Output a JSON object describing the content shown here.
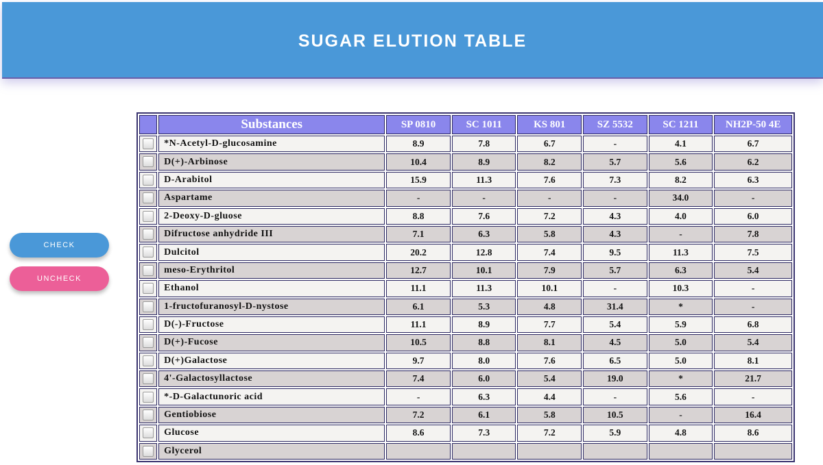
{
  "header": {
    "title": "SUGAR ELUTION TABLE"
  },
  "buttons": {
    "check_label": "CHECK",
    "uncheck_label": "UNCHECK"
  },
  "table": {
    "columns": [
      "Substances",
      "SP 0810",
      "SC 1011",
      "KS 801",
      "SZ 5532",
      "SC 1211",
      "NH2P-50 4E"
    ],
    "rows": [
      {
        "name": "*N-Acetyl-D-glucosamine",
        "values": [
          "8.9",
          "7.8",
          "6.7",
          "-",
          "4.1",
          "6.7"
        ]
      },
      {
        "name": "D(+)-Arbinose",
        "values": [
          "10.4",
          "8.9",
          "8.2",
          "5.7",
          "5.6",
          "6.2"
        ]
      },
      {
        "name": "D-Arabitol",
        "values": [
          "15.9",
          "11.3",
          "7.6",
          "7.3",
          "8.2",
          "6.3"
        ]
      },
      {
        "name": "Aspartame",
        "values": [
          "-",
          "-",
          "-",
          "-",
          "34.0",
          "-"
        ]
      },
      {
        "name": "2-Deoxy-D-gluose",
        "values": [
          "8.8",
          "7.6",
          "7.2",
          "4.3",
          "4.0",
          "6.0"
        ]
      },
      {
        "name": "Difructose anhydride III",
        "values": [
          "7.1",
          "6.3",
          "5.8",
          "4.3",
          "-",
          "7.8"
        ]
      },
      {
        "name": "Dulcitol",
        "values": [
          "20.2",
          "12.8",
          "7.4",
          "9.5",
          "11.3",
          "7.5"
        ]
      },
      {
        "name": "meso-Erythritol",
        "values": [
          "12.7",
          "10.1",
          "7.9",
          "5.7",
          "6.3",
          "5.4"
        ]
      },
      {
        "name": "Ethanol",
        "values": [
          "11.1",
          "11.3",
          "10.1",
          "-",
          "10.3",
          "-"
        ]
      },
      {
        "name": "1-fructofuranosyl-D-nystose",
        "values": [
          "6.1",
          "5.3",
          "4.8",
          "31.4",
          "*",
          "-"
        ]
      },
      {
        "name": "D(-)-Fructose",
        "values": [
          "11.1",
          "8.9",
          "7.7",
          "5.4",
          "5.9",
          "6.8"
        ]
      },
      {
        "name": "D(+)-Fucose",
        "values": [
          "10.5",
          "8.8",
          "8.1",
          "4.5",
          "5.0",
          "5.4"
        ]
      },
      {
        "name": "D(+)Galactose",
        "values": [
          "9.7",
          "8.0",
          "7.6",
          "6.5",
          "5.0",
          "8.1"
        ]
      },
      {
        "name": "4'-Galactosyllactose",
        "values": [
          "7.4",
          "6.0",
          "5.4",
          "19.0",
          "*",
          "21.7"
        ]
      },
      {
        "name": "*-D-Galactunoric acid",
        "values": [
          "-",
          "6.3",
          "4.4",
          "-",
          "5.6",
          "-"
        ]
      },
      {
        "name": "Gentiobiose",
        "values": [
          "7.2",
          "6.1",
          "5.8",
          "10.5",
          "-",
          "16.4"
        ]
      },
      {
        "name": "Glucose",
        "values": [
          "8.6",
          "7.3",
          "7.2",
          "5.9",
          "4.8",
          "8.6"
        ]
      },
      {
        "name": "Glycerol",
        "values": [
          "",
          "",
          "",
          "",
          "",
          ""
        ]
      }
    ]
  }
}
